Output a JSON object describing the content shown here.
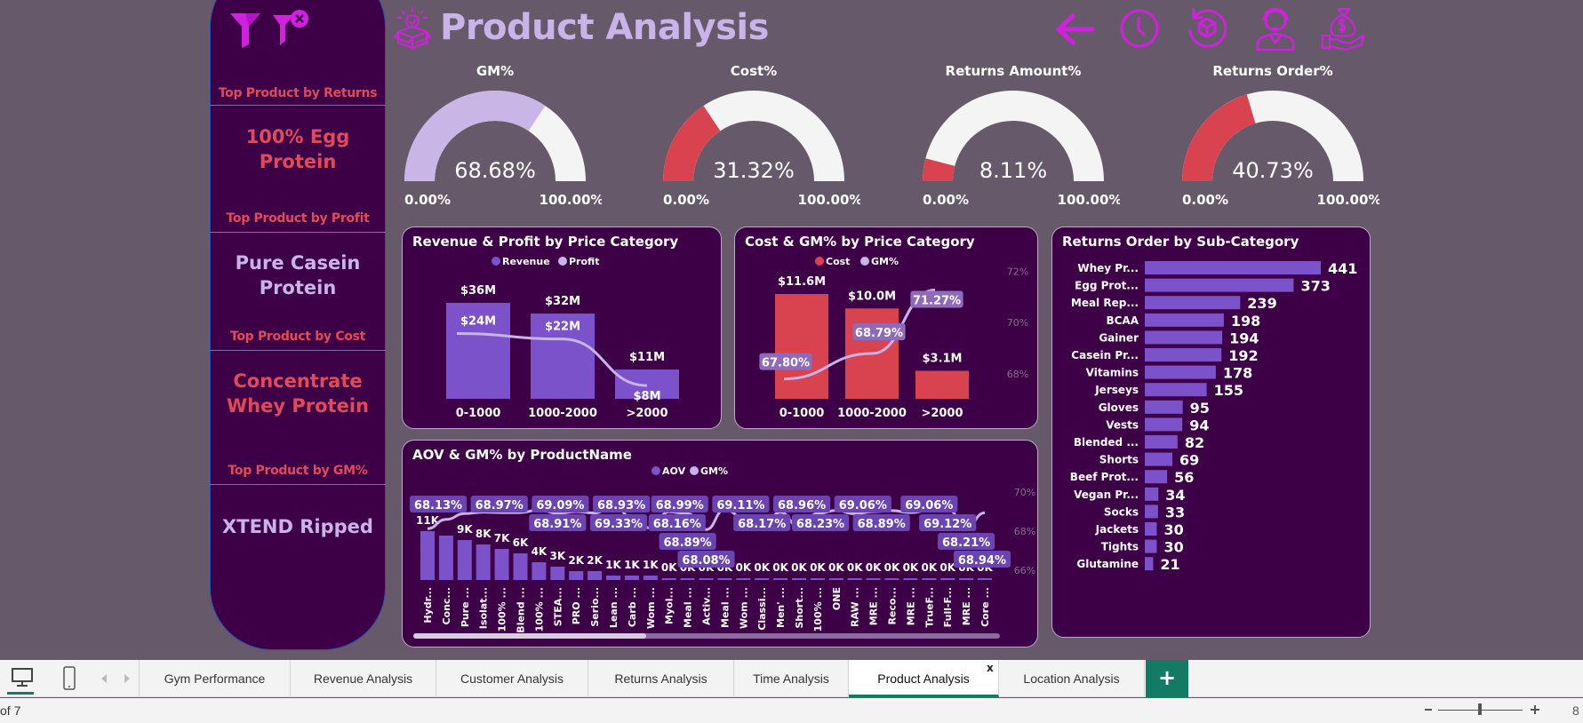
{
  "header": {
    "title": "Product Analysis",
    "icons": [
      "box-check-icon",
      "filter-icon",
      "clear-filter-icon",
      "back-arrow-icon",
      "clock-icon",
      "box-return-icon",
      "customer-support-icon",
      "money-bag-hand-icon"
    ]
  },
  "colors": {
    "background": "#665a6a",
    "panel": "#3d0047",
    "bar_purple": "#7b52c9",
    "red": "#d9434f",
    "light_purple": "#c9b3e9",
    "magenta": "#d21fe0",
    "tab_green": "#137a63"
  },
  "left_panel": {
    "cards": [
      {
        "label": "Top Product by Returns",
        "value": "100% Egg Protein",
        "color": "#e04a5a"
      },
      {
        "label": "Top Product by Profit",
        "value": "Pure Casein Protein",
        "color": "#c9b3e9"
      },
      {
        "label": "Top Product by Cost",
        "value": "Concentrate Whey Protein",
        "color": "#e04a5a"
      },
      {
        "label": "Top Product by GM%",
        "value": "XTEND Ripped",
        "color": "#c9b3e9"
      }
    ]
  },
  "gauges": [
    {
      "title": "GM%",
      "value": 68.68,
      "display": "68.68%",
      "min": "0.00%",
      "max": "100.00%",
      "color": "#c9b6e6"
    },
    {
      "title": "Cost%",
      "value": 31.32,
      "display": "31.32%",
      "min": "0.00%",
      "max": "100.00%",
      "color": "#d9434f"
    },
    {
      "title": "Returns Amount%",
      "value": 8.11,
      "display": "8.11%",
      "min": "0.00%",
      "max": "100.00%",
      "color": "#d9434f"
    },
    {
      "title": "Returns Order%",
      "value": 40.73,
      "display": "40.73%",
      "min": "0.00%",
      "max": "100.00%",
      "color": "#d9434f"
    }
  ],
  "chart_data": [
    {
      "type": "bar+line",
      "title": "Revenue & Profit by Price Category",
      "categories": [
        "0-1000",
        "1000-2000",
        ">2000"
      ],
      "series": [
        {
          "name": "Revenue",
          "type": "bar",
          "values": [
            36,
            32,
            11
          ],
          "labels": [
            "$36M",
            "$32M",
            "$11M"
          ]
        },
        {
          "name": "Profit",
          "type": "line",
          "values": [
            24,
            22,
            8
          ],
          "labels": [
            "$24M",
            "$22M",
            "$8M"
          ]
        }
      ],
      "legend": "top-center"
    },
    {
      "type": "bar+line",
      "title": "Cost & GM% by Price Category",
      "categories": [
        "0-1000",
        "1000-2000",
        ">2000"
      ],
      "series": [
        {
          "name": "Cost",
          "type": "bar",
          "values": [
            11.6,
            10.0,
            3.1
          ],
          "labels": [
            "$11.6M",
            "$10.0M",
            "$3.1M"
          ]
        },
        {
          "name": "GM%",
          "type": "line",
          "values": [
            67.8,
            68.79,
            71.27
          ],
          "labels": [
            "67.80%",
            "68.79%",
            "71.27%"
          ]
        }
      ],
      "y2_ticks": [
        "72%",
        "70%",
        "68%"
      ],
      "y2lim": [
        67.3,
        72.5
      ],
      "legend": "top-center"
    },
    {
      "type": "bar",
      "orientation": "horizontal",
      "title": "Returns Order by Sub-Category",
      "categories": [
        "Whey Pr...",
        "Egg Prot...",
        "Meal Rep...",
        "BCAA",
        "Gainer",
        "Casein Pr...",
        "Vitamins",
        "Jerseys",
        "Gloves",
        "Vests",
        "Blended ...",
        "Shorts",
        "Beef Prot...",
        "Vegan Pr...",
        "Socks",
        "Jackets",
        "Tights",
        "Glutamine"
      ],
      "values": [
        441,
        373,
        239,
        198,
        194,
        192,
        178,
        155,
        95,
        94,
        82,
        69,
        56,
        34,
        33,
        30,
        30,
        21
      ]
    },
    {
      "type": "bar+line",
      "title": "AOV & GM% by ProductName",
      "categories": [
        "Hydr...",
        "Conc...",
        "Pure ...",
        "Isolat...",
        "100% ...",
        "Blend ...",
        "100% ...",
        "STEA...",
        "PRO ...",
        "Serio...",
        "Lean ...",
        "Carb ...",
        "Wom ...",
        "Myol...",
        "Meal ...",
        "Activ...",
        "Meal ...",
        "Wom ...",
        "Classi...",
        "Men' ...",
        "Short...",
        "100% ...",
        "ONE",
        "RAW ...",
        "MRE ...",
        "Reco...",
        "MRE ...",
        "TrueF...",
        "Full-F...",
        "MRE ...",
        "Core ..."
      ],
      "series": [
        {
          "name": "AOV",
          "type": "bar",
          "values": [
            11,
            10,
            9,
            8,
            7,
            6,
            4,
            3,
            2,
            2,
            1,
            1,
            1,
            0.4,
            0.4,
            0.4,
            0.4,
            0.4,
            0.4,
            0.4,
            0.4,
            0.4,
            0.4,
            0.4,
            0.4,
            0.4,
            0.4,
            0.4,
            0.4,
            0.4,
            0.3
          ],
          "labels": [
            "11K",
            "",
            "9K",
            "8K",
            "7K",
            "6K",
            "4K",
            "3K",
            "2K",
            "2K",
            "1K",
            "1K",
            "1K",
            "0K",
            "0K",
            "0K",
            "0K",
            "0K",
            "0K",
            "0K",
            "0K",
            "0K",
            "0K",
            "0K",
            "0K",
            "0K",
            "0K",
            "0K",
            "0K",
            "0K",
            "0K"
          ]
        },
        {
          "name": "GM%",
          "type": "line",
          "values": [
            68.13,
            68.6,
            68.9,
            68.97,
            68.95,
            68.95,
            69.09,
            68.91,
            69.0,
            68.93,
            69.33,
            68.7,
            68.16,
            68.99,
            68.89,
            68.08,
            69.11,
            68.7,
            68.17,
            68.96,
            68.23,
            68.9,
            69.06,
            68.89,
            69.0,
            69.05,
            68.95,
            69.06,
            69.12,
            68.21,
            68.94
          ],
          "labels": [
            "68.13%",
            "",
            "",
            "68.97%",
            "",
            "",
            "69.09%",
            "68.91%",
            "",
            "68.93%",
            "69.33%",
            "",
            "68.16%",
            "68.99%",
            "68.89%",
            "68.08%",
            "69.11%",
            "",
            "68.17%",
            "68.96%",
            "68.23%",
            "",
            "69.06%",
            "68.89%",
            "",
            "",
            "",
            "69.06%",
            "69.12%",
            "68.21%",
            "68.94%"
          ]
        }
      ],
      "y2_ticks": [
        "70%",
        "68%",
        "66%"
      ],
      "y2lim": [
        65.5,
        70.5
      ],
      "legend": "top-center"
    }
  ],
  "tabs": {
    "items": [
      "Gym Performance",
      "Revenue Analysis",
      "Customer Analysis",
      "Returns Analysis",
      "Time Analysis",
      "Product Analysis",
      "Location Analysis"
    ],
    "active": "Product Analysis",
    "close": "x",
    "add": "+"
  },
  "status": {
    "page": "of 7",
    "zoom": "8"
  }
}
